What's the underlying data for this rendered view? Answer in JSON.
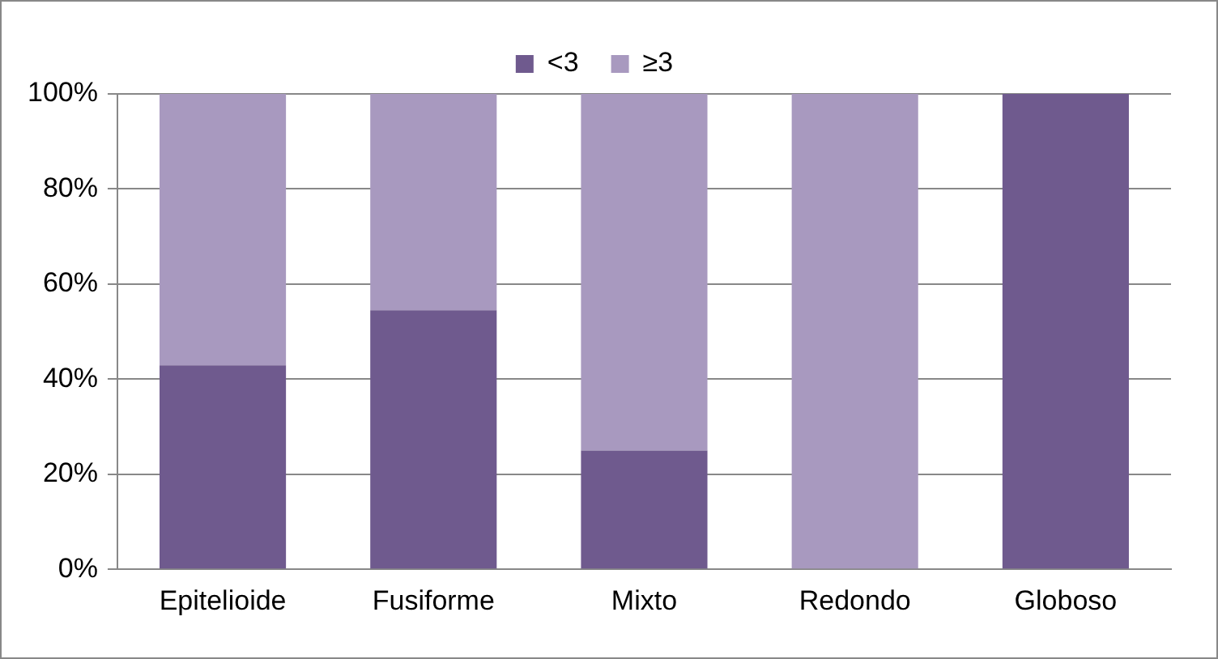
{
  "chart_data": {
    "type": "bar",
    "stacked": true,
    "categories": [
      "Epitelioide",
      "Fusiforme",
      "Mixto",
      "Redondo",
      "Globoso"
    ],
    "series": [
      {
        "name": "<3",
        "color": "#6f5a8e",
        "values": [
          42.9,
          54.5,
          25,
          0,
          100
        ]
      },
      {
        "name": "≥3",
        "color": "#a899bf",
        "values": [
          57.1,
          45.5,
          75,
          100,
          0
        ]
      }
    ],
    "ylim": [
      0,
      100
    ],
    "yticks": [
      {
        "value": 0,
        "label": "0%"
      },
      {
        "value": 20,
        "label": "20%"
      },
      {
        "value": 40,
        "label": "40%"
      },
      {
        "value": 60,
        "label": "60%"
      },
      {
        "value": 80,
        "label": "80%"
      },
      {
        "value": 100,
        "label": "100%"
      }
    ],
    "grid": "y",
    "legend": "top"
  }
}
